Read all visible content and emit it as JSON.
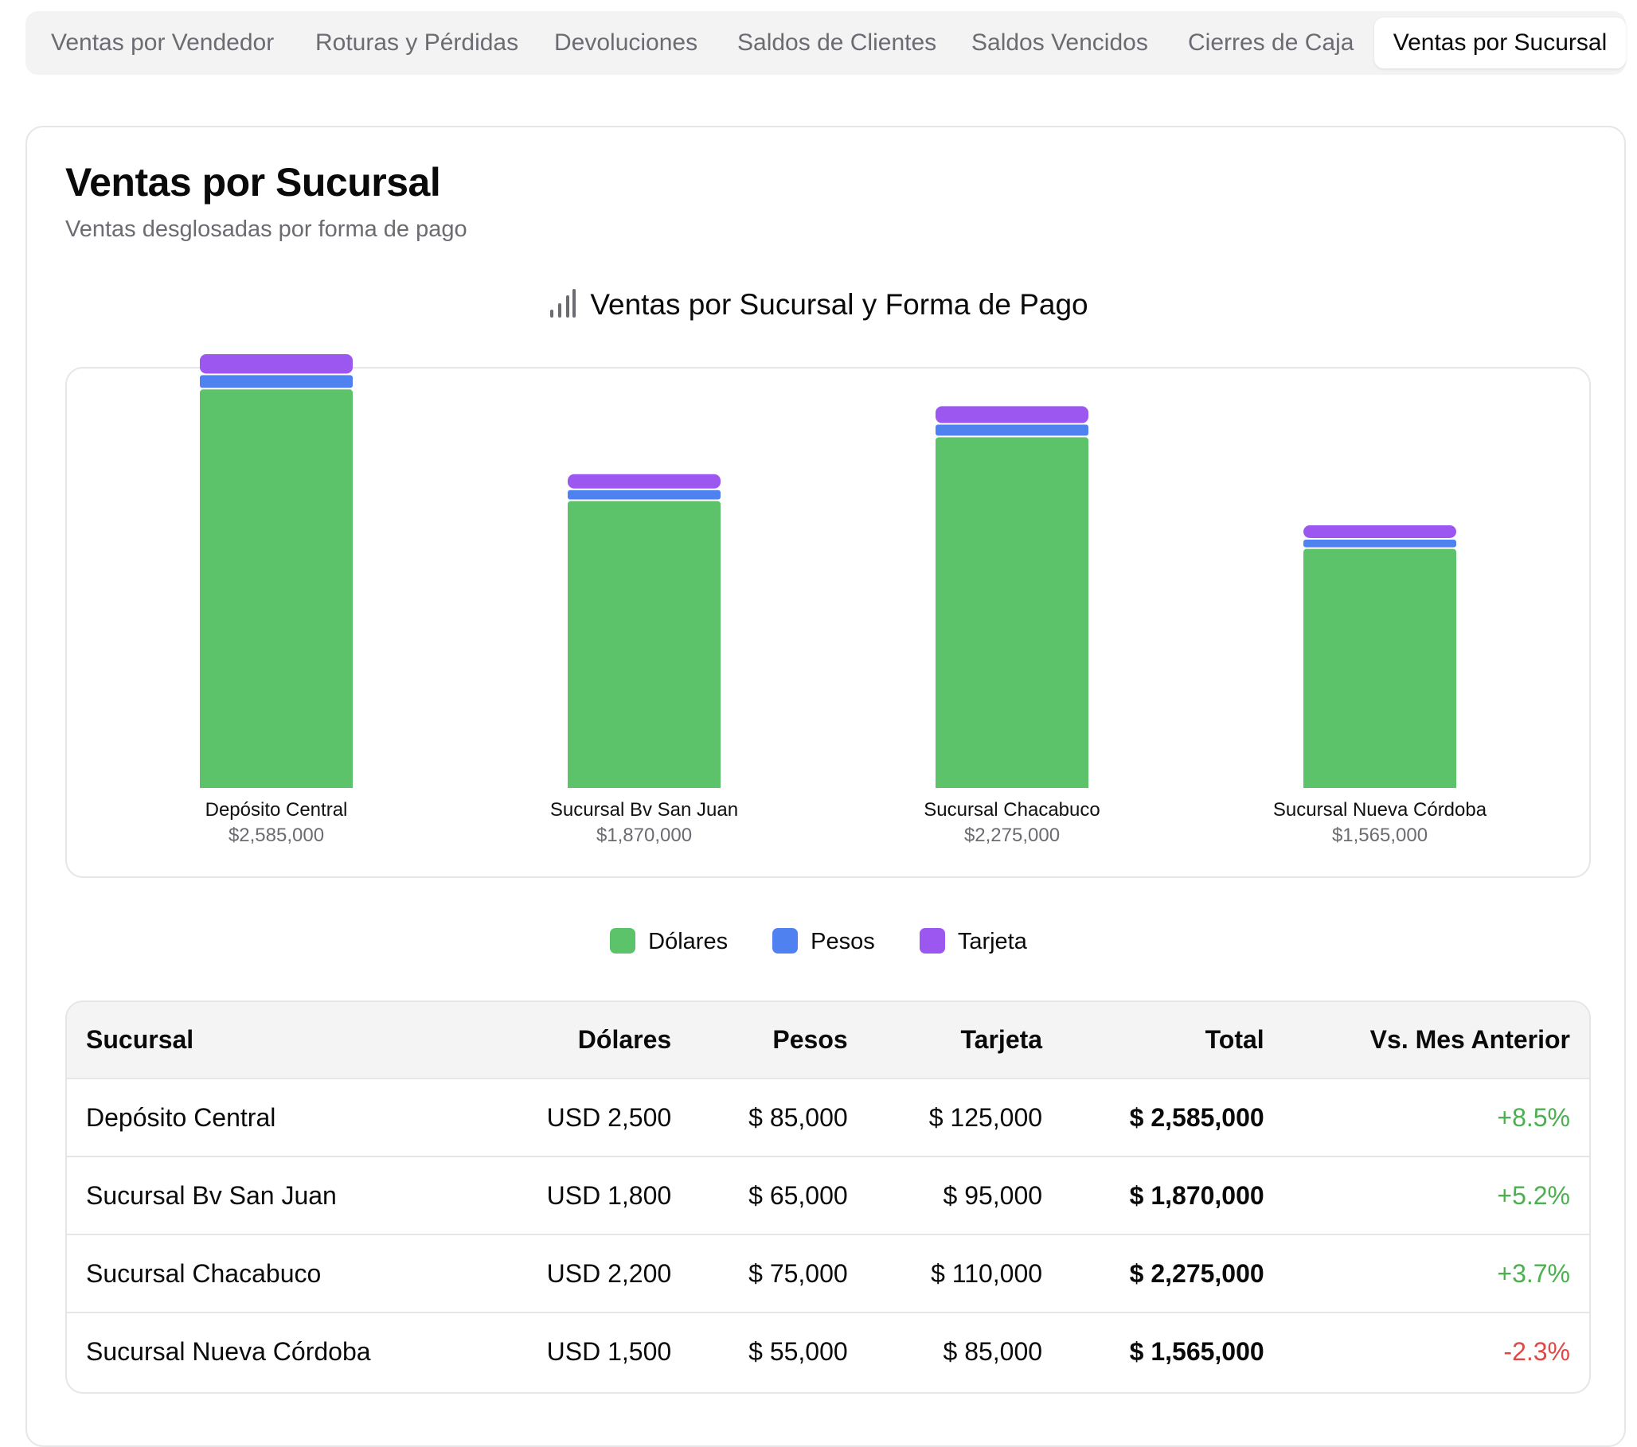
{
  "tabs": [
    {
      "label": "Ventas por Vendedor"
    },
    {
      "label": "Roturas y Pérdidas"
    },
    {
      "label": "Devoluciones"
    },
    {
      "label": "Saldos de Clientes"
    },
    {
      "label": "Saldos Vencidos"
    },
    {
      "label": "Cierres de Caja"
    },
    {
      "label": "Ventas por Sucursal",
      "active": true
    }
  ],
  "page": {
    "title": "Ventas por Sucursal",
    "subtitle": "Ventas desglosadas por forma de pago"
  },
  "chart_data": {
    "type": "bar",
    "stacked": true,
    "title": "Ventas por Sucursal y Forma de Pago",
    "categories": [
      "Depósito Central",
      "Sucursal Bv San Juan",
      "Sucursal Chacabuco",
      "Sucursal Nueva Córdoba"
    ],
    "totals_label": [
      "$2,585,000",
      "$1,870,000",
      "$2,275,000",
      "$1,565,000"
    ],
    "series": [
      {
        "name": "Dólares",
        "color": "#5cc36a",
        "values": [
          2375000,
          1710000,
          2090000,
          1425000
        ]
      },
      {
        "name": "Pesos",
        "color": "#4f82f0",
        "values": [
          85000,
          65000,
          75000,
          55000
        ]
      },
      {
        "name": "Tarjeta",
        "color": "#9c57f0",
        "values": [
          125000,
          95000,
          110000,
          85000
        ]
      }
    ],
    "ylim": [
      0,
      2585000
    ],
    "legend_position": "bottom-center"
  },
  "legend": [
    {
      "label": "Dólares",
      "color": "#5cc36a"
    },
    {
      "label": "Pesos",
      "color": "#4f82f0"
    },
    {
      "label": "Tarjeta",
      "color": "#9c57f0"
    }
  ],
  "table": {
    "headers": {
      "sucursal": "Sucursal",
      "dolares": "Dólares",
      "pesos": "Pesos",
      "tarjeta": "Tarjeta",
      "total": "Total",
      "vs": "Vs. Mes Anterior"
    },
    "rows": [
      {
        "sucursal": "Depósito Central",
        "dolares": "USD 2,500",
        "pesos": "$ 85,000",
        "tarjeta": "$ 125,000",
        "total": "$ 2,585,000",
        "vs": "+8.5%"
      },
      {
        "sucursal": "Sucursal Bv San Juan",
        "dolares": "USD 1,800",
        "pesos": "$ 65,000",
        "tarjeta": "$ 95,000",
        "total": "$ 1,870,000",
        "vs": "+5.2%"
      },
      {
        "sucursal": "Sucursal Chacabuco",
        "dolares": "USD 2,200",
        "pesos": "$ 75,000",
        "tarjeta": "$ 110,000",
        "total": "$ 2,275,000",
        "vs": "+3.7%"
      },
      {
        "sucursal": "Sucursal Nueva Córdoba",
        "dolares": "USD 1,500",
        "pesos": "$ 55,000",
        "tarjeta": "$ 85,000",
        "total": "$ 1,565,000",
        "vs": "-2.3%"
      }
    ]
  }
}
